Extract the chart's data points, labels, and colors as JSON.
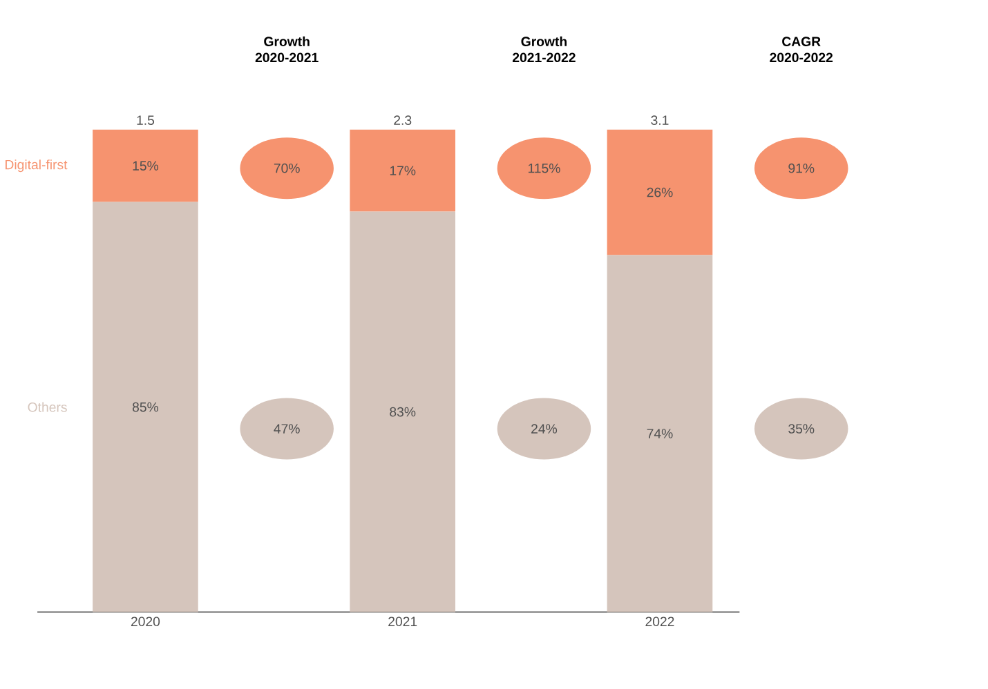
{
  "chart_data": {
    "type": "bar",
    "stacked": true,
    "categories": [
      "2020",
      "2021",
      "2022"
    ],
    "series": [
      {
        "name": "Others",
        "color": "#d5c5bc",
        "values": [
          85,
          83,
          74
        ],
        "value_labels": [
          "85%",
          "83%",
          "74%"
        ]
      },
      {
        "name": "Digital-first",
        "color": "#f6936f",
        "values": [
          15,
          17,
          26
        ],
        "value_labels": [
          "15%",
          "17%",
          "26%"
        ]
      }
    ],
    "tick_labels": "x",
    "annotations": [
      "Growth 2020-2021",
      "70%",
      "47%",
      "Growth 2021-2022",
      "115%",
      "24%",
      "CAGR 2020-2022",
      "91%",
      "35%",
      {
        "text": "1.5",
        "x": "2020",
        "y": 100
      },
      {
        "text": "2.3",
        "x": "2021",
        "y": 100
      },
      {
        "text": "3.1",
        "x": "2022",
        "y": 100
      }
    ]
  }
}
